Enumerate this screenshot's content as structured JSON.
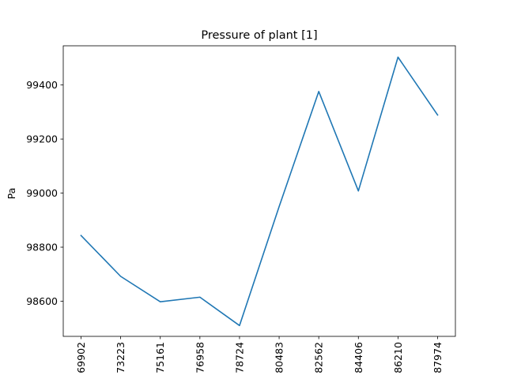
{
  "chart_data": {
    "type": "line",
    "title": "Pressure of plant [1]",
    "xlabel": "",
    "ylabel": "Pa",
    "categories": [
      "69902",
      "73223",
      "75161",
      "76958",
      "78724",
      "80483",
      "82562",
      "84406",
      "86210",
      "87974"
    ],
    "series": [
      {
        "values": [
          98843,
          98692,
          98598,
          98615,
          98510,
          98950,
          99376,
          99008,
          99503,
          99289
        ],
        "color": "#1f77b4"
      }
    ],
    "yticks": [
      98600,
      98800,
      99000,
      99200,
      99400
    ],
    "ylim": [
      98470,
      99545
    ],
    "grid": false,
    "legend": "none"
  }
}
